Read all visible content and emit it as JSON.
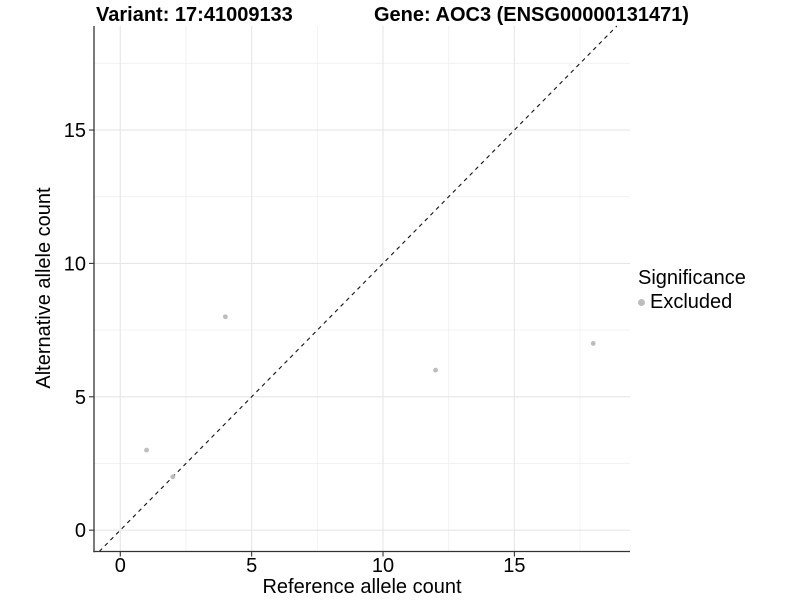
{
  "chart_data": {
    "type": "scatter",
    "title_left": "Variant: 17:41009133",
    "title_right": "Gene: AOC3 (ENSG00000131471)",
    "xlabel": "Reference allele count",
    "ylabel": "Alternative allele count",
    "xlim": [
      -1,
      19.4
    ],
    "ylim": [
      -0.8,
      18.9
    ],
    "xticks": [
      0,
      5,
      10,
      15
    ],
    "yticks": [
      0,
      5,
      10,
      15
    ],
    "minor_ticks_x": [
      2.5,
      7.5,
      12.5,
      17.5
    ],
    "minor_ticks_y": [
      2.5,
      7.5,
      12.5,
      17.5
    ],
    "grid": "major+minor",
    "series": [
      {
        "name": "Excluded",
        "color": "#bdbdbd",
        "points": [
          [
            1,
            3
          ],
          [
            2,
            2
          ],
          [
            4,
            8
          ],
          [
            12,
            6
          ],
          [
            18,
            7
          ]
        ]
      }
    ],
    "reference_line": {
      "type": "identity",
      "slope": 1,
      "intercept": 0,
      "style": "dashed",
      "color": "#111111"
    },
    "legend": {
      "title": "Significance",
      "position": "right",
      "items": [
        {
          "label": "Excluded",
          "color": "#bdbdbd"
        }
      ]
    },
    "colors": {
      "background": "#ffffff",
      "grid_major": "#e6e6e6",
      "grid_minor": "#f0f0f0",
      "axis_line": "#333333",
      "text": "#000000",
      "point": "#bdbdbd"
    }
  }
}
